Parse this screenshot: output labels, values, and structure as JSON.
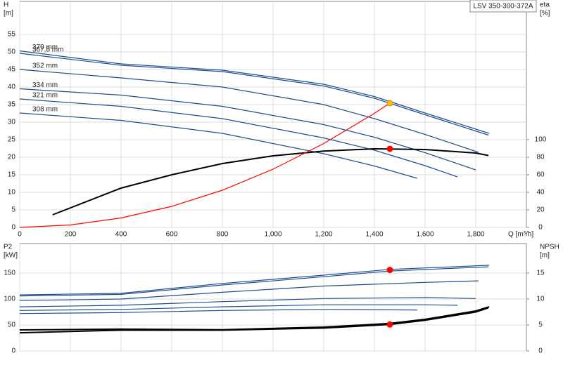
{
  "chart_data": [
    {
      "type": "line",
      "title": "LSV 350-300-372A",
      "ylabel": [
        "H",
        "[m]"
      ],
      "y2label": [
        "eta",
        "[%]"
      ],
      "xlabel": "Q [m³/h]",
      "xlim": [
        0,
        2000
      ],
      "ylim": [
        0,
        64.4
      ],
      "y2lim": [
        0,
        257.6
      ],
      "xticks": [
        0,
        200,
        400,
        600,
        800,
        {
          "value": 1000,
          "label": "1,000"
        },
        {
          "value": 1200,
          "label": "1,200"
        },
        {
          "value": 1400,
          "label": "1,400"
        },
        {
          "value": 1600,
          "label": "1,600"
        },
        {
          "value": 1800,
          "label": "1,800"
        }
      ],
      "yticks": [
        0,
        5,
        10,
        15,
        20,
        25,
        30,
        35,
        40,
        45,
        50,
        55
      ],
      "y2ticks": [
        0,
        20,
        40,
        60,
        80,
        100
      ],
      "xtick_labels": true,
      "grid": true,
      "series": [
        {
          "name": "370 mm",
          "color": "#1f4e8c",
          "x": [
            0,
            400,
            800,
            1200,
            1400,
            1600,
            1853
          ],
          "values": [
            50.3,
            46.6,
            44.8,
            40.8,
            37.3,
            32.6,
            26.8
          ]
        },
        {
          "name": "367.8 mm",
          "color": "#1f4e8c",
          "x": [
            0,
            400,
            800,
            1200,
            1400,
            1600,
            1850
          ],
          "values": [
            49.6,
            46.2,
            44.4,
            40.3,
            36.8,
            32.1,
            26.3
          ]
        },
        {
          "name": "352 mm",
          "color": "#1f4e8c",
          "x": [
            0,
            400,
            800,
            1200,
            1400,
            1600,
            1811
          ],
          "values": [
            45,
            42.6,
            40,
            35,
            31,
            26.5,
            21.4
          ]
        },
        {
          "name": "334 mm",
          "color": "#1f4e8c",
          "x": [
            0,
            400,
            800,
            1200,
            1400,
            1600,
            1800
          ],
          "values": [
            39.5,
            37.7,
            34.5,
            29.3,
            25.7,
            21.3,
            16.4
          ]
        },
        {
          "name": "321 mm",
          "color": "#1f4e8c",
          "x": [
            0,
            400,
            800,
            1200,
            1400,
            1600,
            1728
          ],
          "values": [
            36.6,
            34.5,
            31,
            25.5,
            22,
            17.6,
            14.4
          ]
        },
        {
          "name": "308 mm",
          "color": "#1f4e8c",
          "x": [
            0,
            400,
            800,
            1200,
            1400,
            1569
          ],
          "values": [
            32.6,
            30.5,
            26.8,
            21,
            17.5,
            14
          ]
        },
        {
          "color": "#000000",
          "axis": "y2",
          "x": [
            130,
            400,
            600,
            800,
            1000,
            1200,
            1400,
            1600,
            1800,
            1850
          ],
          "values": [
            14.4,
            44.8,
            60,
            72.8,
            81.6,
            87,
            89.6,
            88.8,
            84.8,
            82
          ]
        },
        {
          "color": "#ff0000",
          "x": [
            0,
            200,
            400,
            600,
            800,
            1000,
            1200,
            1400,
            1461
          ],
          "values": [
            0,
            0.7,
            2.7,
            6,
            10.6,
            16.6,
            23.9,
            32.5,
            35.4
          ]
        },
        {
          "type": "scatter",
          "color": "#ffc000",
          "x": [
            1461
          ],
          "values": [
            35.4
          ]
        },
        {
          "type": "scatter",
          "color": "#ff0000",
          "axis": "y2",
          "x": [
            1461
          ],
          "values": [
            89.6
          ]
        }
      ]
    },
    {
      "type": "line",
      "ylabel": [
        "P2",
        "[kW]"
      ],
      "y2label": [
        "NPSH",
        "[m]"
      ],
      "xlim": [
        0,
        2000
      ],
      "ylim": [
        0,
        206.8
      ],
      "y2lim": [
        0,
        20.68
      ],
      "xticks": [
        0,
        200,
        400,
        600,
        800,
        1000,
        1200,
        1400,
        1600,
        1800
      ],
      "yticks": [
        0,
        50,
        100,
        150
      ],
      "y2ticks": [
        0,
        5,
        10,
        15
      ],
      "xtick_labels": false,
      "grid": true,
      "series": [
        {
          "color": "#1f4e8c",
          "x": [
            0,
            400,
            800,
            1200,
            1461,
            1853
          ],
          "values": [
            108,
            111,
            130,
            146,
            157,
            165
          ]
        },
        {
          "color": "#1f4e8c",
          "x": [
            0,
            400,
            800,
            1200,
            1461,
            1850
          ],
          "values": [
            106,
            109,
            127,
            143,
            154,
            162
          ]
        },
        {
          "color": "#1f4e8c",
          "x": [
            0,
            400,
            800,
            1200,
            1600,
            1811
          ],
          "values": [
            97,
            100,
            113,
            125,
            132,
            135
          ]
        },
        {
          "color": "#1f4e8c",
          "x": [
            0,
            400,
            800,
            1200,
            1600,
            1800
          ],
          "values": [
            85,
            88,
            95,
            101,
            103,
            101
          ]
        },
        {
          "color": "#1f4e8c",
          "x": [
            0,
            400,
            800,
            1200,
            1600,
            1728
          ],
          "values": [
            78,
            80,
            85,
            89,
            89,
            88
          ]
        },
        {
          "color": "#1f4e8c",
          "x": [
            0,
            400,
            800,
            1200,
            1569
          ],
          "values": [
            72,
            74,
            78,
            80,
            79
          ]
        },
        {
          "color": "#000000",
          "axis": "y2",
          "x": [
            0,
            400,
            800,
            1200,
            1461,
            1600,
            1800,
            1853
          ],
          "values": [
            4.05,
            4.2,
            4.1,
            4.6,
            5.3,
            6.1,
            7.7,
            8.5
          ]
        },
        {
          "color": "#000000",
          "axis": "y2",
          "x": [
            0,
            400,
            800,
            1200,
            1461,
            1600,
            1800,
            1850
          ],
          "values": [
            3.5,
            4,
            4,
            4.4,
            5.1,
            5.9,
            7.5,
            8.3
          ]
        },
        {
          "type": "scatter",
          "color": "#ff0000",
          "x": [
            1461
          ],
          "values": [
            156
          ]
        },
        {
          "type": "scatter",
          "color": "#ff0000",
          "axis": "y2",
          "x": [
            1461
          ],
          "values": [
            5.1
          ]
        }
      ]
    }
  ]
}
